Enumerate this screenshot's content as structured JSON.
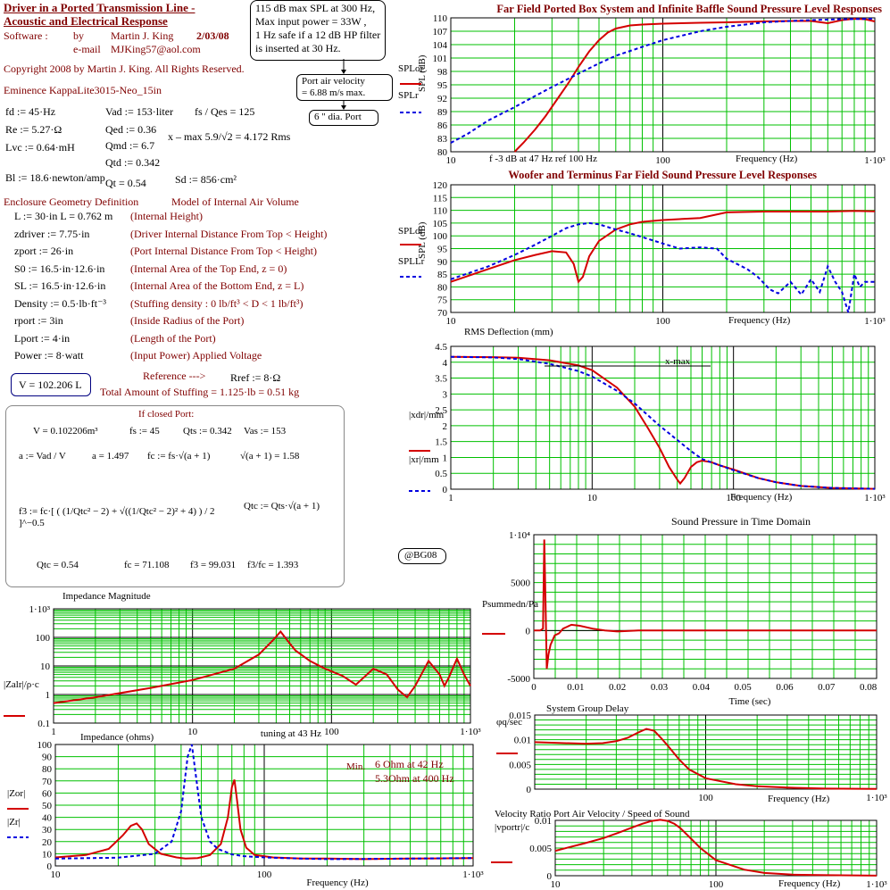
{
  "header": {
    "title_line1": "Driver in a Ported Transmission Line -",
    "title_line2": "Acoustic and Electrical Response",
    "software_label": "Software :",
    "by_label": "by",
    "author": "Martin J. King",
    "date": "2/03/08",
    "email_label": "e-mail",
    "email": "MJKing57@aol.com",
    "copyright": "Copyright 2008 by Martin J. King. All Rights Reserved.",
    "driver": "Eminence KappaLite3015-Neo_15in"
  },
  "notes": {
    "spl_box_line1": "115 dB max SPL at 300 Hz,",
    "spl_box_line2": "Max input power = 33W ,",
    "spl_box_line3": "1 Hz safe if a 12 dB HP filter",
    "spl_box_line4": "is inserted at 30 Hz.",
    "port_velocity_line1": "Port air velocity",
    "port_velocity_line2": "= 6.88 m/s max.",
    "port_dia": "6 \" dia. Port",
    "bg08": "@BG08"
  },
  "driver_params": {
    "fd": "fd := 45·Hz",
    "re": "Re := 5.27·Ω",
    "lvc": "Lvc := 0.64·mH",
    "bl": "Bl := 18.6·newton/amp",
    "vad": "Vad := 153·liter",
    "qed": "Qed := 0.36",
    "qmd": "Qmd := 6.7",
    "qtd": "Qtd := 0.342",
    "qt": "Qt = 0.54",
    "sd": "Sd := 856·cm²",
    "fs_qes": "fs / Qes = 125",
    "xmax": "x – max   5.9/√2 = 4.172   Rms"
  },
  "enclosure": {
    "heading1": "Enclosure Geometry Definition",
    "heading2": "Model of Internal Air Volume",
    "rows": [
      {
        "expr": "L := 30·in    L = 0.762 m",
        "desc": "(Internal Height)"
      },
      {
        "expr": "zdriver := 7.75·in",
        "desc": "(Driver Internal Distance From Top < Height)"
      },
      {
        "expr": "zport := 26·in",
        "desc": "(Port Internal Distance From Top < Height)"
      },
      {
        "expr": "S0 := 16.5·in·12.6·in",
        "desc": "(Internal Area of the Top End, z = 0)"
      },
      {
        "expr": "SL := 16.5·in·12.6·in",
        "desc": "(Internal Area of the Bottom End, z = L)"
      },
      {
        "expr": "Density := 0.5·lb·ft⁻³",
        "desc": "(Stuffing density : 0 lb/ft³ < D < 1 lb/ft³)"
      },
      {
        "expr": "rport := 3in",
        "desc": "(Inside Radius of the Port)"
      },
      {
        "expr": "Lport := 4·in",
        "desc": "(Length of the Port)"
      },
      {
        "expr": "Power := 8·watt",
        "desc": "(Input Power)   Applied Voltage"
      }
    ],
    "reference": "Reference --->",
    "rref": "Rref := 8·Ω",
    "volume": "V = 102.206 L",
    "stuffing": "Total Amount of Stuffing = 1.125·lb = 0.51 kg"
  },
  "closed_port": {
    "title": "If closed Port:",
    "line1_v": "V = 0.102206m³",
    "line1_fs": "fs := 45",
    "line1_qts": "Qts := 0.342",
    "line1_vas": "Vas := 153",
    "a_def": "a := Vad / V",
    "a_val": "a = 1.497",
    "fc_def": "fc := fs·√(a + 1)",
    "sqrt_val": "√(a + 1) = 1.58",
    "f3_def": "f3 := fc·[ ( (1/Qtc² − 2) + √((1/Qtc² − 2)² + 4) ) / 2 ]^−0.5",
    "qtc_def": "Qtc := Qts·√(a + 1)",
    "qtc_val": "Qtc = 0.54",
    "fc_val": "fc = 71.108",
    "f3_val": "f3 = 99.031",
    "ratio": "f3/fc = 1.393"
  },
  "colors": {
    "red": "#d40000",
    "blue": "#0000e0",
    "grid": "#00c000",
    "text": "#800000"
  },
  "chart_data": [
    {
      "id": "far_field",
      "type": "line",
      "title": "Far Field Ported Box System and Infinite Baffle Sound Pressure Level Responses",
      "ylabel": "SPL (dB)",
      "xlabel": "Frequency (Hz)",
      "annotation": "f -3 dB at 47 Hz ref 100 Hz",
      "xscale": "log",
      "xlim": [
        10,
        1000
      ],
      "ylim": [
        80,
        110
      ],
      "xticks": [
        "10",
        "100",
        "1·10³"
      ],
      "yticks": [
        "80",
        "83",
        "86",
        "89",
        "92",
        "95",
        "98",
        "101",
        "104",
        "107",
        "110"
      ],
      "legend": [
        "SPLor",
        "SPLr"
      ],
      "series": [
        {
          "name": "SPLor",
          "color": "red",
          "dash": false,
          "x": [
            20,
            22,
            25,
            28,
            32,
            36,
            40,
            45,
            50,
            55,
            60,
            70,
            80,
            100,
            150,
            200,
            300,
            400,
            500,
            600,
            700,
            800,
            900,
            1000
          ],
          "y": [
            80,
            82,
            85,
            88,
            92,
            95.5,
            99,
            102.5,
            105,
            106.7,
            107.6,
            108.3,
            108.5,
            108.7,
            108.9,
            109,
            109.2,
            109.3,
            109.3,
            108.8,
            109.5,
            109.8,
            109.7,
            109.2
          ]
        },
        {
          "name": "SPLr",
          "color": "blue",
          "dash": true,
          "x": [
            10,
            12,
            15,
            20,
            25,
            30,
            40,
            50,
            60,
            80,
            100,
            150,
            200,
            300,
            400,
            500,
            700,
            1000
          ],
          "y": [
            82,
            84,
            87,
            90,
            92.5,
            94.5,
            97.5,
            99.8,
            101.5,
            103.5,
            105,
            107,
            108,
            109,
            109.3,
            109.5,
            109.7,
            109.8
          ]
        }
      ]
    },
    {
      "id": "woofer_terminus",
      "type": "line",
      "title": "Woofer and Terminus Far Field Sound Pressure Level Responses",
      "ylabel": "SPL (dB)",
      "xlabel": "Frequency (Hz)",
      "xscale": "log",
      "xlim": [
        10,
        1000
      ],
      "ylim": [
        70,
        120
      ],
      "xticks": [
        "10",
        "100",
        "1·10³"
      ],
      "yticks": [
        "70",
        "75",
        "80",
        "85",
        "90",
        "95",
        "100",
        "105",
        "110",
        "115",
        "120"
      ],
      "legend": [
        "SPLdr",
        "SPLLr"
      ],
      "series": [
        {
          "name": "SPLdr",
          "color": "red",
          "dash": false,
          "x": [
            10,
            15,
            20,
            25,
            30,
            35,
            38,
            40,
            42,
            45,
            50,
            60,
            70,
            80,
            100,
            150,
            200,
            300,
            400,
            600,
            800,
            1000
          ],
          "y": [
            82,
            87,
            90.5,
            92.5,
            94,
            93.5,
            89,
            82,
            84,
            92,
            98,
            102.5,
            104.5,
            105.5,
            106.2,
            107,
            109.2,
            109.5,
            109.5,
            109.5,
            109.8,
            109.6
          ]
        },
        {
          "name": "SPLLr",
          "color": "blue",
          "dash": true,
          "x": [
            10,
            15,
            20,
            25,
            30,
            35,
            40,
            45,
            50,
            60,
            70,
            80,
            100,
            120,
            150,
            180,
            200,
            250,
            280,
            320,
            350,
            400,
            450,
            500,
            550,
            600,
            650,
            700,
            750,
            800,
            850,
            900,
            950,
            1000
          ],
          "y": [
            83,
            88,
            92.5,
            96.5,
            100,
            103,
            104.5,
            105,
            104.5,
            102.5,
            101,
            99.5,
            97,
            95,
            95.5,
            95,
            91,
            87,
            84,
            79,
            77.5,
            82,
            77,
            83,
            78,
            88,
            82,
            78,
            70,
            85,
            80,
            82,
            82,
            82
          ]
        }
      ]
    },
    {
      "id": "deflection",
      "type": "line",
      "title": "RMS Deflection (mm)",
      "xlabel": "Frequency (Hz)",
      "annotation": "x-max",
      "xscale": "log",
      "xlim": [
        1,
        1000
      ],
      "ylim": [
        0,
        4.5
      ],
      "xticks": [
        "1",
        "10",
        "100",
        "1·10³"
      ],
      "yticks": [
        "0",
        "0.5",
        "1",
        "1.5",
        "2",
        "2.5",
        "3",
        "3.5",
        "4",
        "4.5"
      ],
      "legend": [
        "|xdr|/mm",
        "|xr|/mm"
      ],
      "series": [
        {
          "name": "|xdr|/mm",
          "color": "red",
          "dash": false,
          "x": [
            1,
            2,
            3,
            5,
            8,
            10,
            15,
            20,
            25,
            30,
            35,
            40,
            42,
            45,
            50,
            55,
            60,
            70,
            80,
            100,
            150,
            200,
            300,
            500,
            1000
          ],
          "y": [
            4.17,
            4.16,
            4.14,
            4.06,
            3.9,
            3.75,
            3.2,
            2.6,
            1.9,
            1.3,
            0.7,
            0.3,
            0.18,
            0.35,
            0.7,
            0.85,
            0.9,
            0.85,
            0.75,
            0.62,
            0.35,
            0.22,
            0.1,
            0.04,
            0.01
          ]
        },
        {
          "name": "|xr|/mm",
          "color": "blue",
          "dash": true,
          "x": [
            1,
            2,
            3,
            5,
            8,
            10,
            15,
            20,
            30,
            40,
            50,
            60,
            80,
            100,
            150,
            200,
            300,
            500,
            1000
          ],
          "y": [
            4.17,
            4.15,
            4.1,
            3.95,
            3.72,
            3.55,
            3.1,
            2.7,
            2.0,
            1.55,
            1.2,
            0.95,
            0.75,
            0.6,
            0.35,
            0.22,
            0.1,
            0.04,
            0.01
          ]
        }
      ]
    },
    {
      "id": "time_domain",
      "type": "line",
      "title": "Sound Pressure in Time Domain",
      "xlabel": "Time (sec)",
      "xlim": [
        0,
        0.082
      ],
      "ylim": [
        -5000,
        10000
      ],
      "xticks": [
        "0",
        "0.01",
        "0.02",
        "0.03",
        "0.04",
        "0.05",
        "0.06",
        "0.07",
        "0.08"
      ],
      "yticks": [
        "-5000",
        "0",
        "5000",
        "1·10⁴"
      ],
      "legend": [
        "Psummedn/Pa"
      ],
      "series": [
        {
          "name": "Psummedn/Pa",
          "color": "red",
          "dash": false,
          "x": [
            0,
            0.0015,
            0.0022,
            0.0025,
            0.0028,
            0.0031,
            0.0035,
            0.004,
            0.005,
            0.006,
            0.007,
            0.009,
            0.011,
            0.014,
            0.017,
            0.02,
            0.025,
            0.03,
            0.04,
            0.05,
            0.06,
            0.07,
            0.082
          ],
          "y": [
            0,
            0,
            200,
            9500,
            3000,
            -4000,
            -2500,
            -1500,
            -500,
            -300,
            200,
            600,
            500,
            200,
            0,
            -100,
            0,
            0,
            0,
            0,
            0,
            0,
            0
          ]
        }
      ]
    },
    {
      "id": "impedance_mag",
      "type": "line",
      "title": "Impedance Magnitude",
      "xlabel": "",
      "annotation": "tuning at 43 Hz",
      "xscale": "log",
      "yscale": "log",
      "xlim": [
        1,
        1000
      ],
      "ylim": [
        0.1,
        1000
      ],
      "xticks": [
        "1",
        "10",
        "100",
        "1·10³"
      ],
      "yticks": [
        "0.1",
        "1",
        "10",
        "100",
        "1·10³"
      ],
      "legend": [
        "|Zalr|/ρ·c"
      ],
      "series": [
        {
          "name": "|Zalr|/ρ·c",
          "color": "red",
          "dash": false,
          "x": [
            1,
            2,
            5,
            10,
            20,
            30,
            38,
            43,
            48,
            55,
            70,
            90,
            120,
            150,
            200,
            250,
            300,
            350,
            400,
            500,
            600,
            650,
            700,
            800,
            900,
            1000
          ],
          "y": [
            0.5,
            0.8,
            1.7,
            3.2,
            8,
            25,
            80,
            160,
            80,
            35,
            15,
            8,
            4.5,
            2.2,
            8,
            5,
            1.5,
            0.8,
            2,
            15,
            5,
            2,
            4,
            18,
            5,
            2
          ]
        }
      ]
    },
    {
      "id": "impedance_ohms",
      "type": "line",
      "title": "Impedance (ohms)",
      "xlabel": "Frequency (Hz)",
      "annotation_label": "Min.",
      "annotation_line1": "6 Ohm at 42 Hz",
      "annotation_line2": "5.3Ohm at 400 Hz",
      "xscale": "log",
      "xlim": [
        10,
        1000
      ],
      "ylim": [
        0,
        100
      ],
      "xticks": [
        "10",
        "100",
        "1·10³"
      ],
      "yticks": [
        "0",
        "10",
        "20",
        "30",
        "40",
        "50",
        "60",
        "70",
        "80",
        "90",
        "100"
      ],
      "legend": [
        "|Zor|",
        "|Zr|"
      ],
      "series": [
        {
          "name": "|Zor|",
          "color": "red",
          "dash": false,
          "x": [
            10,
            14,
            18,
            21,
            23,
            24.5,
            26,
            28,
            32,
            38,
            42,
            48,
            55,
            62,
            67,
            70,
            72,
            74,
            77,
            82,
            90,
            110,
            150,
            200,
            300,
            500,
            700,
            1000
          ],
          "y": [
            7,
            9,
            14,
            25,
            33,
            35,
            30,
            18,
            10,
            7,
            6,
            6.5,
            9,
            18,
            40,
            65,
            71,
            55,
            30,
            15,
            9,
            7,
            6,
            6,
            5.6,
            6,
            6.2,
            6.5
          ]
        },
        {
          "name": "|Zr|",
          "color": "blue",
          "dash": true,
          "x": [
            10,
            20,
            30,
            36,
            40,
            43,
            45,
            47,
            50,
            55,
            60,
            70,
            80,
            100,
            150,
            200,
            300,
            500,
            1000
          ],
          "y": [
            6,
            6.8,
            10,
            20,
            45,
            90,
            100,
            75,
            40,
            20,
            14,
            9.5,
            8,
            7,
            6,
            5.6,
            5.7,
            6,
            6.5
          ]
        }
      ]
    },
    {
      "id": "group_delay",
      "type": "line",
      "title": "System Group Delay",
      "xlabel": "Frequency (Hz)",
      "xscale": "log",
      "xlim": [
        10,
        1000
      ],
      "ylim": [
        0,
        0.015
      ],
      "xticks": [
        "100",
        "1·10³"
      ],
      "yticks": [
        "0",
        "0.005",
        "0.01",
        "0.015"
      ],
      "legend": [
        "φq/sec"
      ],
      "series": [
        {
          "name": "φq/sec",
          "color": "red",
          "dash": false,
          "x": [
            10,
            15,
            20,
            25,
            30,
            35,
            40,
            45,
            50,
            55,
            60,
            70,
            80,
            100,
            150,
            200,
            300,
            500,
            1000
          ],
          "y": [
            0.0095,
            0.0093,
            0.0092,
            0.0093,
            0.0097,
            0.0104,
            0.0114,
            0.0122,
            0.0118,
            0.0103,
            0.0088,
            0.006,
            0.004,
            0.0022,
            0.001,
            0.0006,
            0.0003,
            0.0001,
            5e-05
          ]
        }
      ]
    },
    {
      "id": "velocity_ratio",
      "type": "line",
      "title": "Velocity Ratio  Port Air Velocity / Speed of Sound",
      "xlabel": "Frequency (Hz)",
      "xscale": "log",
      "xlim": [
        10,
        1000
      ],
      "ylim": [
        0,
        0.01
      ],
      "xticks": [
        "10",
        "100",
        "1·10³"
      ],
      "yticks": [
        "0",
        "0.005",
        "0.01"
      ],
      "legend": [
        "|vportr|/c"
      ],
      "series": [
        {
          "name": "|vportr|/c",
          "color": "red",
          "dash": false,
          "x": [
            10,
            15,
            20,
            25,
            30,
            35,
            40,
            45,
            50,
            55,
            60,
            70,
            80,
            100,
            150,
            200,
            300,
            500,
            1000
          ],
          "y": [
            0.0045,
            0.0058,
            0.0068,
            0.0078,
            0.0087,
            0.0094,
            0.0099,
            0.0101,
            0.0099,
            0.0094,
            0.0086,
            0.0067,
            0.005,
            0.0028,
            0.0011,
            0.0005,
            0.0002,
            0.0001,
            2e-05
          ]
        }
      ]
    }
  ]
}
